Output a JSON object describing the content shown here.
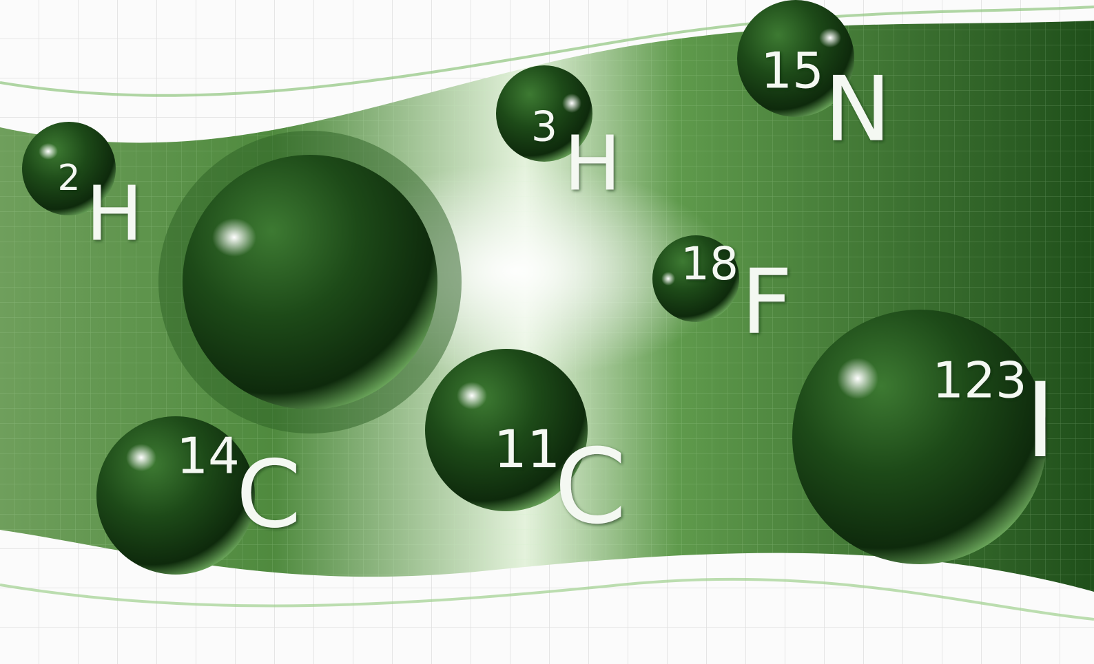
{
  "isotopes": [
    {
      "mass": "2",
      "symbol": "H"
    },
    {
      "mass": "3",
      "symbol": "H"
    },
    {
      "mass": "15",
      "symbol": "N"
    },
    {
      "mass": "18",
      "symbol": "F"
    },
    {
      "mass": "14",
      "symbol": "C"
    },
    {
      "mass": "11",
      "symbol": "C"
    },
    {
      "mass": "123",
      "symbol": "I"
    }
  ]
}
